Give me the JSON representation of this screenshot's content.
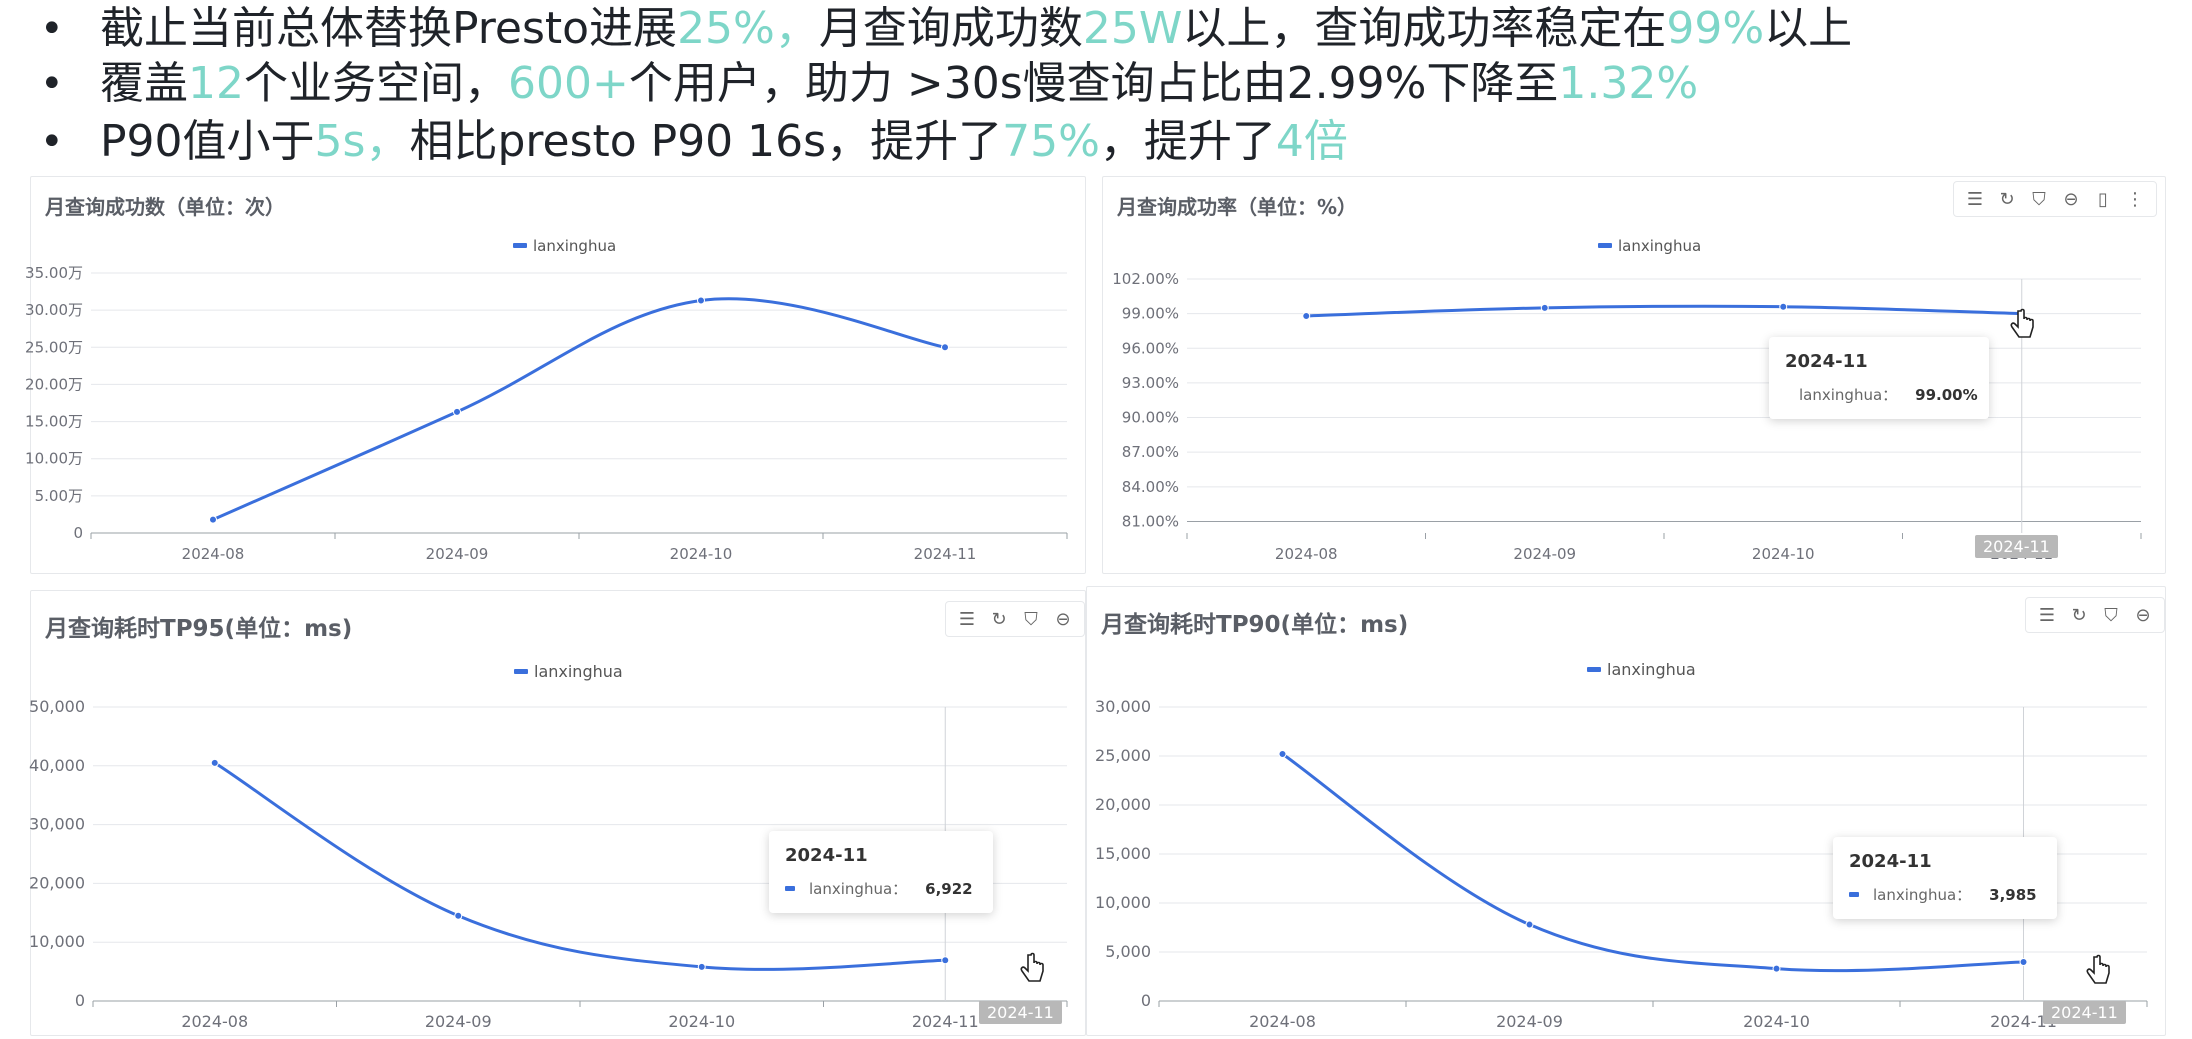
{
  "bullets": [
    [
      {
        "t": "截止当前总体替换Presto进展",
        "h": false
      },
      {
        "t": "25%，",
        "h": true
      },
      {
        "t": "月查询成功数",
        "h": false
      },
      {
        "t": "25W",
        "h": true
      },
      {
        "t": "以上，查询成功率稳定在",
        "h": false
      },
      {
        "t": "99%",
        "h": true
      },
      {
        "t": "以上",
        "h": false
      }
    ],
    [
      {
        "t": "覆盖",
        "h": false
      },
      {
        "t": "12",
        "h": true
      },
      {
        "t": "个业务空间，",
        "h": false
      },
      {
        "t": "600+",
        "h": true
      },
      {
        "t": "个用户，助力 >30s慢查询占比由2.99%下降至",
        "h": false
      },
      {
        "t": "1.32%",
        "h": true
      }
    ],
    [
      {
        "t": "P90值小于",
        "h": false
      },
      {
        "t": "5s，",
        "h": true
      },
      {
        "t": "相比presto P90 16s，提升了",
        "h": false
      },
      {
        "t": "75%",
        "h": true
      },
      {
        "t": "，提升了",
        "h": false
      },
      {
        "t": "4倍",
        "h": true
      }
    ]
  ],
  "bullet_marker": "•",
  "colors": {
    "series": "#3a6fdc",
    "highlight": "#7ed6c8",
    "grid": "#e5e7eb",
    "axis_text": "#6e7079"
  },
  "chart_data": [
    {
      "type": "line",
      "title": "月查询成功数（单位：次）",
      "legend": "lanxinghua",
      "categories": [
        "2024-08",
        "2024-09",
        "2024-10",
        "2024-11"
      ],
      "series": [
        {
          "name": "lanxinghua",
          "values": [
            18000,
            163000,
            313000,
            250000
          ]
        }
      ],
      "ylim": [
        0,
        350000
      ],
      "yticks": [
        0,
        50000,
        100000,
        150000,
        200000,
        250000,
        300000,
        350000
      ],
      "ytick_labels": [
        "0",
        "5.00万",
        "10.00万",
        "15.00万",
        "20.00万",
        "25.00万",
        "30.00万",
        "35.00万"
      ],
      "legend_position": "top-center",
      "toolbar": false
    },
    {
      "type": "line",
      "title": "月查询成功率（单位：%）",
      "legend": "lanxinghua",
      "categories": [
        "2024-08",
        "2024-09",
        "2024-10",
        "2024-11"
      ],
      "series": [
        {
          "name": "lanxinghua",
          "values": [
            98.8,
            99.5,
            99.6,
            99.0
          ]
        }
      ],
      "ylim": [
        80,
        102
      ],
      "yticks": [
        81,
        84,
        87,
        90,
        93,
        96,
        99,
        102
      ],
      "ytick_labels": [
        "81.00%",
        "84.00%",
        "87.00%",
        "90.00%",
        "93.00%",
        "96.00%",
        "99.00%",
        "102.00%"
      ],
      "legend_position": "top-center",
      "tooltip": {
        "title": "2024-11",
        "label": "lanxinghua：",
        "value": "99.00%"
      },
      "highlight_category": "2024-11",
      "toolbar": true
    },
    {
      "type": "line",
      "title": "月查询耗时TP95(单位：ms)",
      "legend": "lanxinghua",
      "categories": [
        "2024-08",
        "2024-09",
        "2024-10",
        "2024-11"
      ],
      "series": [
        {
          "name": "lanxinghua",
          "values": [
            40500,
            14500,
            5800,
            6922
          ]
        }
      ],
      "ylim": [
        0,
        50000
      ],
      "yticks": [
        0,
        10000,
        20000,
        30000,
        40000,
        50000
      ],
      "ytick_labels": [
        "0",
        "10,000",
        "20,000",
        "30,000",
        "40,000",
        "50,000"
      ],
      "legend_position": "top-center",
      "tooltip": {
        "title": "2024-11",
        "label": "lanxinghua：",
        "value": "6,922"
      },
      "highlight_category": "2024-11",
      "toolbar": true
    },
    {
      "type": "line",
      "title": "月查询耗时TP90(单位：ms)",
      "legend": "lanxinghua",
      "categories": [
        "2024-08",
        "2024-09",
        "2024-10",
        "2024-11"
      ],
      "series": [
        {
          "name": "lanxinghua",
          "values": [
            25200,
            7800,
            3300,
            3985
          ]
        }
      ],
      "ylim": [
        0,
        30000
      ],
      "yticks": [
        0,
        5000,
        10000,
        15000,
        20000,
        25000,
        30000
      ],
      "ytick_labels": [
        "0",
        "5,000",
        "10,000",
        "15,000",
        "20,000",
        "25,000",
        "30,000"
      ],
      "legend_position": "top-center",
      "tooltip": {
        "title": "2024-11",
        "label": "lanxinghua：",
        "value": "3,985"
      },
      "highlight_category": "2024-11",
      "toolbar": true
    }
  ]
}
